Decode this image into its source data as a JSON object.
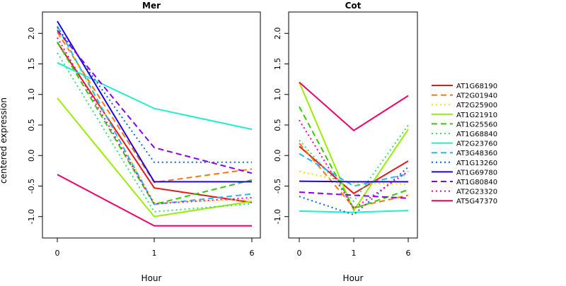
{
  "chart_data": [
    {
      "type": "line",
      "title": "Mer",
      "xlabel": "Hour",
      "ylabel": "centered expression",
      "categories": [
        "0",
        "1",
        "6"
      ],
      "ylim": [
        -1.35,
        2.35
      ],
      "yticks": [
        "-1.0",
        "-0.5",
        "0.0",
        "0.5",
        "1.0",
        "1.5",
        "2.0"
      ],
      "series": [
        {
          "name": "AT1G68190",
          "values": [
            1.85,
            -0.53,
            -0.77
          ]
        },
        {
          "name": "AT2G01940",
          "values": [
            2.02,
            -0.44,
            -0.22
          ]
        },
        {
          "name": "AT2G25900",
          "values": [
            2.08,
            -0.77,
            -0.72
          ]
        },
        {
          "name": "AT1G21910",
          "values": [
            0.94,
            -1.0,
            -0.75
          ]
        },
        {
          "name": "AT1G25560",
          "values": [
            1.86,
            -0.8,
            -0.4
          ]
        },
        {
          "name": "AT1G68840",
          "values": [
            1.68,
            -0.92,
            -0.79
          ]
        },
        {
          "name": "AT2G23760",
          "values": [
            1.52,
            0.77,
            0.43
          ]
        },
        {
          "name": "AT3G48360",
          "values": [
            2.12,
            -0.8,
            -0.63
          ]
        },
        {
          "name": "AT1G13260",
          "values": [
            2.1,
            -0.11,
            -0.11
          ]
        },
        {
          "name": "AT1G69780",
          "values": [
            2.2,
            -0.43,
            -0.43
          ]
        },
        {
          "name": "AT1G80840",
          "values": [
            2.05,
            0.13,
            -0.29
          ]
        },
        {
          "name": "AT2G23320",
          "values": [
            1.93,
            -0.79,
            -0.69
          ]
        },
        {
          "name": "AT5G47370",
          "values": [
            -0.31,
            -1.15,
            -1.15
          ]
        }
      ]
    },
    {
      "type": "line",
      "title": "Cot",
      "xlabel": "Hour",
      "ylabel": "",
      "categories": [
        "0",
        "1",
        "6"
      ],
      "ylim": [
        -1.35,
        2.35
      ],
      "yticks": [
        "-1.0",
        "-0.5",
        "0.0",
        "0.5",
        "1.0",
        "1.5",
        "2.0"
      ],
      "series": [
        {
          "name": "AT1G68190",
          "values": [
            0.15,
            -0.62,
            -0.09
          ]
        },
        {
          "name": "AT2G01940",
          "values": [
            0.2,
            -0.85,
            -0.65
          ]
        },
        {
          "name": "AT2G25900",
          "values": [
            -0.26,
            -0.45,
            -0.47
          ]
        },
        {
          "name": "AT1G21910",
          "values": [
            1.2,
            -0.9,
            0.43
          ]
        },
        {
          "name": "AT1G25560",
          "values": [
            0.8,
            -0.87,
            -0.56
          ]
        },
        {
          "name": "AT1G68840",
          "values": [
            0.25,
            -0.75,
            0.5
          ]
        },
        {
          "name": "AT2G23760",
          "values": [
            -0.91,
            -0.93,
            -0.9
          ]
        },
        {
          "name": "AT3G48360",
          "values": [
            0.03,
            -0.5,
            -0.3
          ]
        },
        {
          "name": "AT1G13260",
          "values": [
            -0.67,
            -0.97,
            -0.19
          ]
        },
        {
          "name": "AT1G69780",
          "values": [
            -0.42,
            -0.43,
            -0.43
          ]
        },
        {
          "name": "AT1G80840",
          "values": [
            -0.6,
            -0.65,
            -0.7
          ]
        },
        {
          "name": "AT2G23320",
          "values": [
            0.58,
            -0.87,
            -0.26
          ]
        },
        {
          "name": "AT5G47370",
          "values": [
            1.2,
            0.41,
            0.98
          ]
        }
      ]
    }
  ],
  "legend": {
    "placement": "right",
    "items": [
      {
        "name": "AT1G68190",
        "color": "#e31a1c",
        "dash": "solid"
      },
      {
        "name": "AT2G01940",
        "color": "#ff7700",
        "dash": "dashed"
      },
      {
        "name": "AT2G25900",
        "color": "#f5e500",
        "dash": "dotted"
      },
      {
        "name": "AT1G21910",
        "color": "#99ee00",
        "dash": "solid"
      },
      {
        "name": "AT1G25560",
        "color": "#33cc00",
        "dash": "dashed"
      },
      {
        "name": "AT1G68840",
        "color": "#33dd77",
        "dash": "dotted"
      },
      {
        "name": "AT2G23760",
        "color": "#22eecc",
        "dash": "solid"
      },
      {
        "name": "AT3G48360",
        "color": "#22bbee",
        "dash": "dashed"
      },
      {
        "name": "AT1G13260",
        "color": "#0066ee",
        "dash": "dotted"
      },
      {
        "name": "AT1G69780",
        "color": "#2200ee",
        "dash": "solid"
      },
      {
        "name": "AT1G80840",
        "color": "#8800ee",
        "dash": "dashed"
      },
      {
        "name": "AT2G23320",
        "color": "#ee00bb",
        "dash": "dotted"
      },
      {
        "name": "AT5G47370",
        "color": "#ee0066",
        "dash": "solid"
      }
    ]
  }
}
